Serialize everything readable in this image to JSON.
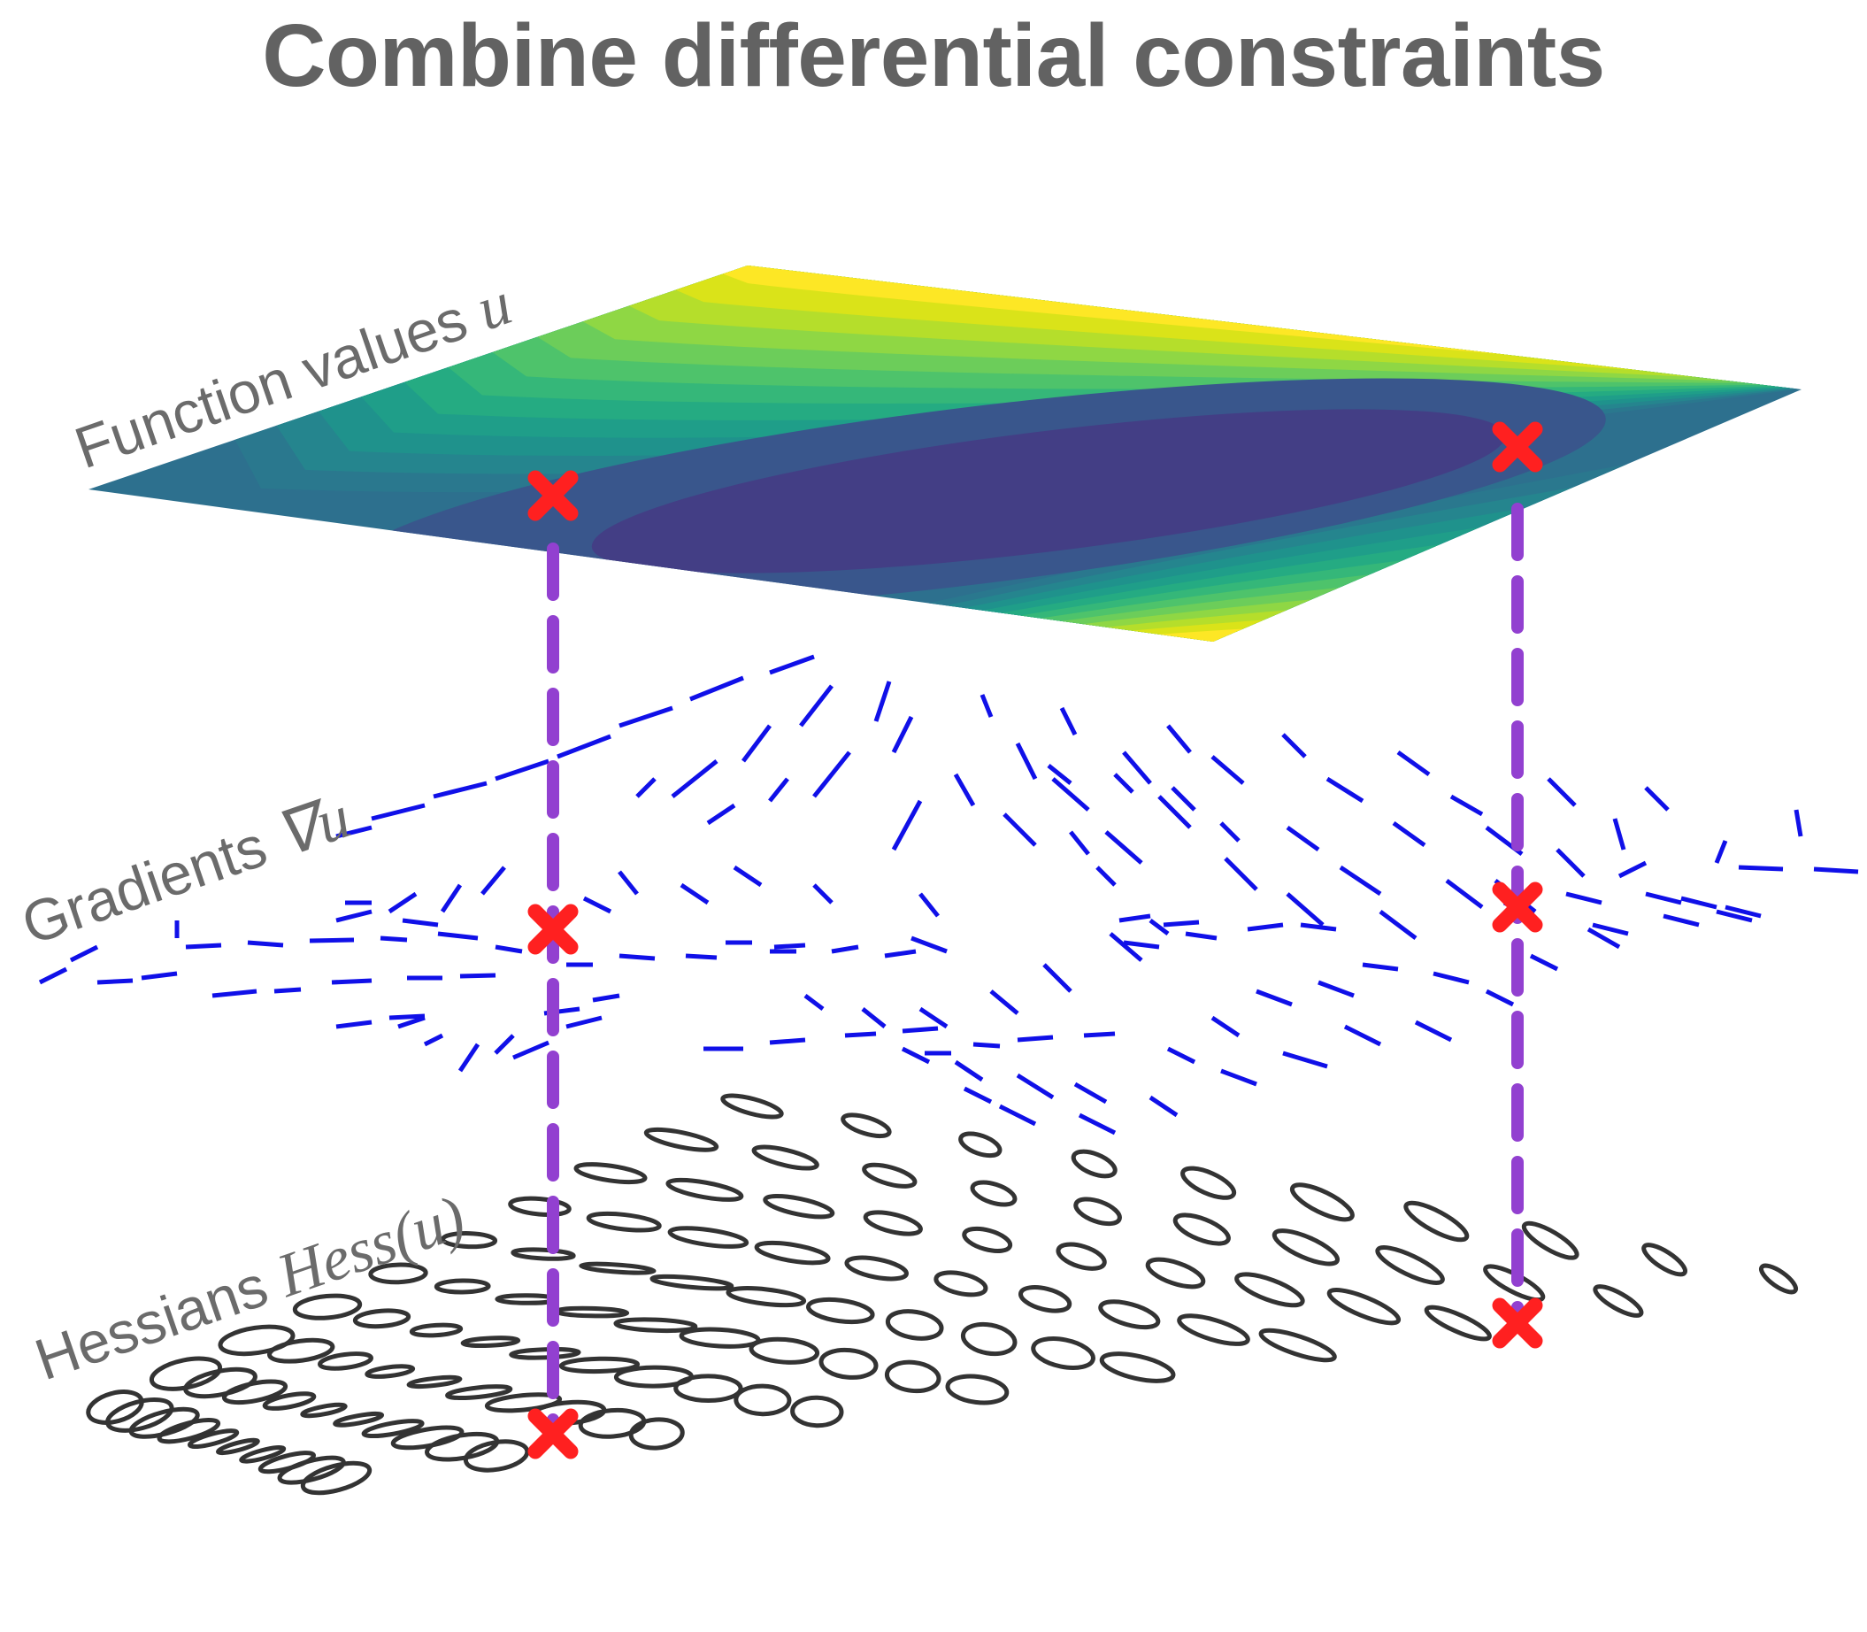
{
  "title": "Combine differential constraints",
  "layers": {
    "function": {
      "text": "Function values ",
      "math": "u"
    },
    "gradients": {
      "text": "Gradients ",
      "math": "∇u"
    },
    "hessians": {
      "text": "Hessians ",
      "math": "Hess(u)"
    }
  },
  "colors": {
    "title": "#626262",
    "label": "#6b6b6b",
    "surface_low": "#433e85",
    "surface_mid": "#2d708e",
    "surface_high": "#fde725",
    "gradient": "#1010e8",
    "hessian": "#333333",
    "connector": "#9240d0",
    "marker": "#ff2020"
  },
  "markers": [
    {
      "name": "constraint-point-left"
    },
    {
      "name": "constraint-point-right"
    }
  ]
}
